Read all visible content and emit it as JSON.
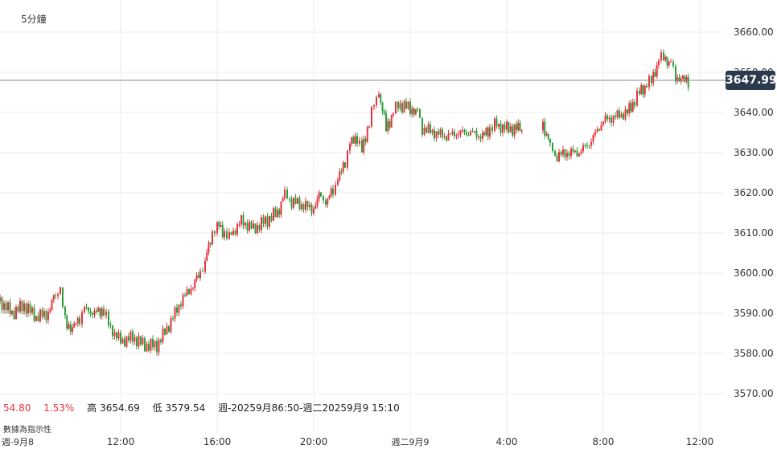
{
  "interval_label": "5分鐘",
  "current_price": "3647.99",
  "info": {
    "change": "54.80",
    "change_pct": "1.53%",
    "high_label": "高",
    "high": "3654.69",
    "low_label": "低",
    "low": "3579.54",
    "range": "週-20259月86:50-週二20259月9 15:10"
  },
  "source_note": "數據為指示性",
  "colors": {
    "up": "#e5343f",
    "down": "#2e9d3c",
    "grid": "#ebebeb",
    "badge": "#2b3a4d"
  },
  "chart_data": {
    "type": "candlestick",
    "y_ticks": [
      3660,
      3650,
      3640,
      3630,
      3620,
      3610,
      3600,
      3590,
      3580,
      3570
    ],
    "ylim": [
      3566,
      3667
    ],
    "x_ticks": [
      "週-9月8",
      "12:00",
      "16:00",
      "20:00",
      "週二9月9",
      "4:00",
      "8:00",
      "12:00"
    ],
    "xlim": [
      7.0,
      36.5
    ],
    "current_price": 3647.99,
    "series": [
      {
        "t": 7.0,
        "c": 3593
      },
      {
        "t": 7.5,
        "c": 3590
      },
      {
        "t": 8.0,
        "c": 3592
      },
      {
        "t": 8.5,
        "c": 3589
      },
      {
        "t": 9.0,
        "c": 3590
      },
      {
        "t": 9.3,
        "c": 3595
      },
      {
        "t": 9.5,
        "c": 3596
      },
      {
        "t": 9.7,
        "c": 3588
      },
      {
        "t": 10.0,
        "c": 3586
      },
      {
        "t": 10.3,
        "c": 3589
      },
      {
        "t": 10.5,
        "c": 3591
      },
      {
        "t": 11.0,
        "c": 3590
      },
      {
        "t": 11.3,
        "c": 3591
      },
      {
        "t": 11.5,
        "c": 3587
      },
      {
        "t": 12.0,
        "c": 3583
      },
      {
        "t": 12.5,
        "c": 3584
      },
      {
        "t": 13.0,
        "c": 3582
      },
      {
        "t": 13.5,
        "c": 3582
      },
      {
        "t": 14.0,
        "c": 3587
      },
      {
        "t": 14.5,
        "c": 3593
      },
      {
        "t": 15.0,
        "c": 3597
      },
      {
        "t": 15.3,
        "c": 3600
      },
      {
        "t": 15.5,
        "c": 3603
      },
      {
        "t": 15.8,
        "c": 3610
      },
      {
        "t": 16.0,
        "c": 3612
      },
      {
        "t": 16.3,
        "c": 3610
      },
      {
        "t": 16.5,
        "c": 3609
      },
      {
        "t": 17.0,
        "c": 3613
      },
      {
        "t": 17.5,
        "c": 3611
      },
      {
        "t": 18.0,
        "c": 3613
      },
      {
        "t": 18.5,
        "c": 3615
      },
      {
        "t": 18.8,
        "c": 3620
      },
      {
        "t": 19.0,
        "c": 3618
      },
      {
        "t": 19.5,
        "c": 3617
      },
      {
        "t": 20.0,
        "c": 3616
      },
      {
        "t": 20.3,
        "c": 3620
      },
      {
        "t": 20.5,
        "c": 3617
      },
      {
        "t": 20.8,
        "c": 3621
      },
      {
        "t": 21.0,
        "c": 3623
      },
      {
        "t": 21.3,
        "c": 3628
      },
      {
        "t": 21.5,
        "c": 3632
      },
      {
        "t": 21.8,
        "c": 3634
      },
      {
        "t": 22.0,
        "c": 3630
      },
      {
        "t": 22.3,
        "c": 3638
      },
      {
        "t": 22.5,
        "c": 3642
      },
      {
        "t": 22.7,
        "c": 3645
      },
      {
        "t": 23.0,
        "c": 3636
      },
      {
        "t": 23.3,
        "c": 3640
      },
      {
        "t": 23.5,
        "c": 3642
      },
      {
        "t": 24.0,
        "c": 3641
      },
      {
        "t": 24.3,
        "c": 3640
      },
      {
        "t": 24.5,
        "c": 3636
      },
      {
        "t": 25.0,
        "c": 3635
      },
      {
        "t": 25.5,
        "c": 3634
      },
      {
        "t": 26.0,
        "c": 3635
      },
      {
        "t": 26.5,
        "c": 3635
      },
      {
        "t": 27.0,
        "c": 3634
      },
      {
        "t": 27.3,
        "c": 3636
      },
      {
        "t": 27.5,
        "c": 3637
      },
      {
        "t": 28.0,
        "c": 3636
      },
      {
        "t": 28.4,
        "c": 3636
      },
      {
        "t": 29.5,
        "c": 3637
      },
      {
        "t": 29.8,
        "c": 3632
      },
      {
        "t": 30.0,
        "c": 3629
      },
      {
        "t": 30.5,
        "c": 3630
      },
      {
        "t": 31.0,
        "c": 3630
      },
      {
        "t": 31.5,
        "c": 3633
      },
      {
        "t": 32.0,
        "c": 3638
      },
      {
        "t": 32.5,
        "c": 3639
      },
      {
        "t": 33.0,
        "c": 3640
      },
      {
        "t": 33.3,
        "c": 3643
      },
      {
        "t": 33.5,
        "c": 3645
      },
      {
        "t": 33.8,
        "c": 3647
      },
      {
        "t": 34.0,
        "c": 3648
      },
      {
        "t": 34.3,
        "c": 3653
      },
      {
        "t": 34.5,
        "c": 3654
      },
      {
        "t": 34.8,
        "c": 3652
      },
      {
        "t": 35.0,
        "c": 3649
      },
      {
        "t": 35.3,
        "c": 3648
      }
    ]
  }
}
